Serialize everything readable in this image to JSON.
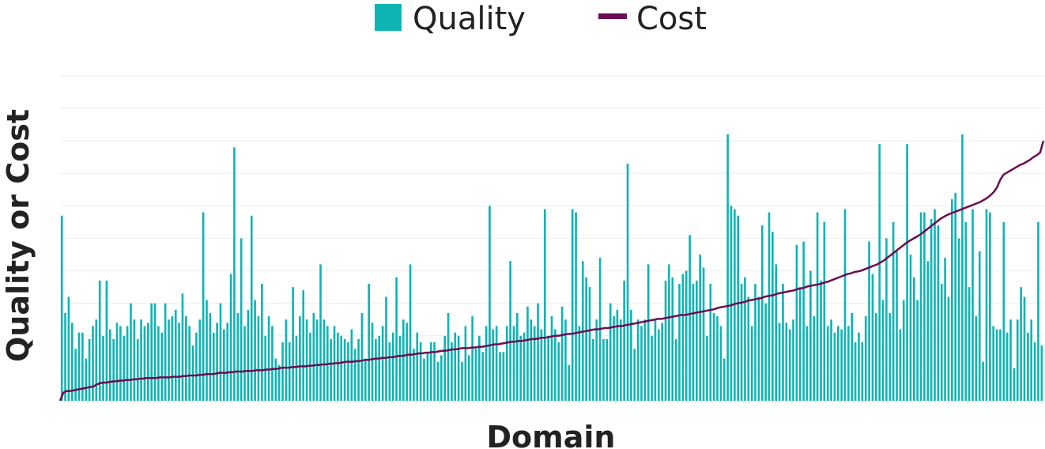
{
  "legend": {
    "quality_label": "Quality",
    "cost_label": "Cost"
  },
  "chart_data": {
    "type": "bar",
    "xlabel": "Domain",
    "ylabel": "Quality or Cost",
    "ylim": [
      0,
      10
    ],
    "grid": true,
    "legend_position": "top-center",
    "colors": {
      "quality": "#0eb4b4",
      "cost": "#6b0c55"
    },
    "series": [
      {
        "name": "Quality",
        "type": "bar",
        "values": [
          5.7,
          2.7,
          3.2,
          2.4,
          1.6,
          2.1,
          2.1,
          1.3,
          1.9,
          2.3,
          2.5,
          3.7,
          2.0,
          3.7,
          2.2,
          1.9,
          2.4,
          2.3,
          2.0,
          2.3,
          3.0,
          2.5,
          1.9,
          2.5,
          2.3,
          2.4,
          3.0,
          3.0,
          2.3,
          2.1,
          3.0,
          2.5,
          2.6,
          2.8,
          2.4,
          3.3,
          2.6,
          2.3,
          1.7,
          2.1,
          2.5,
          5.8,
          3.1,
          2.7,
          2.1,
          2.4,
          3.0,
          2.2,
          2.4,
          3.9,
          7.8,
          2.7,
          5.0,
          2.3,
          2.8,
          5.7,
          3.1,
          2.6,
          3.6,
          2.0,
          2.6,
          2.3,
          1.3,
          1.1,
          1.8,
          2.5,
          1.8,
          3.5,
          2.0,
          2.6,
          3.4,
          2.5,
          2.1,
          2.7,
          2.5,
          4.2,
          2.5,
          2.3,
          1.9,
          2.3,
          2.1,
          2.0,
          1.9,
          1.8,
          2.2,
          1.6,
          1.9,
          2.7,
          1.3,
          3.6,
          2.4,
          1.9,
          2.0,
          2.3,
          3.2,
          1.8,
          2.1,
          3.8,
          2.0,
          2.5,
          2.4,
          4.2,
          1.6,
          2.1,
          1.8,
          1.3,
          1.5,
          1.8,
          1.8,
          1.2,
          1.4,
          2.0,
          2.7,
          1.8,
          2.1,
          2.0,
          1.2,
          2.3,
          1.4,
          2.6,
          1.6,
          2.0,
          1.5,
          2.3,
          6.0,
          2.2,
          2.3,
          1.5,
          1.5,
          2.3,
          4.3,
          2.3,
          2.7,
          2.0,
          2.1,
          2.9,
          2.5,
          2.3,
          3.0,
          2.2,
          5.9,
          2.0,
          2.6,
          2.2,
          1.8,
          2.9,
          2.5,
          1.1,
          5.9,
          5.8,
          2.3,
          4.3,
          3.8,
          3.5,
          1.9,
          2.5,
          4.4,
          1.9,
          1.9,
          3.0,
          2.6,
          2.8,
          2.5,
          3.7,
          7.3,
          2.8,
          1.6,
          2.5,
          2.3,
          2.5,
          4.2,
          2.0,
          2.5,
          2.2,
          2.4,
          3.7,
          4.2,
          3.8,
          1.9,
          3.6,
          3.9,
          4.0,
          5.1,
          3.6,
          3.7,
          4.5,
          4.1,
          2.0,
          3.6,
          2.7,
          2.6,
          2.3,
          1.3,
          8.2,
          6.0,
          5.9,
          5.7,
          3.6,
          3.8,
          3.2,
          2.3,
          3.6,
          3.2,
          5.4,
          3.0,
          5.8,
          5.2,
          4.2,
          2.4,
          3.6,
          2.4,
          2.2,
          2.5,
          4.8,
          3.5,
          4.9,
          2.3,
          4.0,
          2.6,
          5.8,
          3.7,
          5.5,
          2.3,
          2.5,
          2.1,
          2.3,
          2.2,
          5.9,
          2.3,
          2.7,
          1.8,
          2.1,
          1.8,
          2.6,
          4.9,
          3.9,
          2.7,
          7.9,
          3.1,
          5.0,
          2.7,
          5.5,
          4.6,
          2.2,
          3.1,
          7.9,
          4.5,
          3.8,
          3.1,
          5.8,
          5.8,
          4.3,
          5.6,
          5.9,
          5.4,
          3.6,
          4.4,
          3.2,
          6.2,
          6.4,
          5.0,
          8.2,
          5.5,
          3.5,
          5.9,
          2.6,
          4.6,
          1.2,
          5.9,
          5.8,
          2.3,
          2.2,
          2.2,
          5.5,
          2.1,
          2.5,
          1.0,
          2.5,
          3.5,
          3.2,
          2.1,
          2.5,
          1.8,
          5.5,
          1.7
        ]
      },
      {
        "name": "Cost",
        "type": "line",
        "values": [
          0.0,
          0.25,
          0.3,
          0.3,
          0.32,
          0.34,
          0.36,
          0.38,
          0.4,
          0.42,
          0.44,
          0.5,
          0.54,
          0.56,
          0.56,
          0.58,
          0.6,
          0.6,
          0.62,
          0.62,
          0.64,
          0.64,
          0.66,
          0.66,
          0.68,
          0.68,
          0.7,
          0.7,
          0.7,
          0.7,
          0.72,
          0.72,
          0.72,
          0.72,
          0.74,
          0.74,
          0.74,
          0.76,
          0.76,
          0.78,
          0.78,
          0.78,
          0.8,
          0.8,
          0.82,
          0.82,
          0.82,
          0.84,
          0.86,
          0.86,
          0.86,
          0.88,
          0.88,
          0.9,
          0.9,
          0.9,
          0.92,
          0.92,
          0.92,
          0.94,
          0.94,
          0.94,
          0.96,
          0.96,
          0.98,
          0.98,
          1.0,
          1.02,
          1.02,
          1.02,
          1.04,
          1.04,
          1.06,
          1.06,
          1.06,
          1.08,
          1.08,
          1.1,
          1.1,
          1.12,
          1.12,
          1.14,
          1.14,
          1.16,
          1.16,
          1.18,
          1.2,
          1.2,
          1.2,
          1.22,
          1.22,
          1.24,
          1.26,
          1.26,
          1.28,
          1.3,
          1.3,
          1.32,
          1.32,
          1.34,
          1.34,
          1.36,
          1.38,
          1.38,
          1.4,
          1.42,
          1.42,
          1.44,
          1.46,
          1.46,
          1.48,
          1.48,
          1.5,
          1.5,
          1.52,
          1.54,
          1.54,
          1.56,
          1.58,
          1.58,
          1.6,
          1.62,
          1.62,
          1.62,
          1.64,
          1.64,
          1.66,
          1.66,
          1.68,
          1.7,
          1.72,
          1.74,
          1.74,
          1.76,
          1.78,
          1.8,
          1.82,
          1.82,
          1.84,
          1.84,
          1.86,
          1.88,
          1.9,
          1.9,
          1.92,
          1.94,
          1.94,
          1.96,
          1.98,
          2.0,
          2.0,
          2.02,
          2.04,
          2.06,
          2.06,
          2.08,
          2.1,
          2.12,
          2.14,
          2.16,
          2.18,
          2.2,
          2.2,
          2.22,
          2.24,
          2.24,
          2.26,
          2.28,
          2.3,
          2.3,
          2.32,
          2.34,
          2.36,
          2.38,
          2.4,
          2.42,
          2.44,
          2.46,
          2.48,
          2.5,
          2.52,
          2.52,
          2.54,
          2.56,
          2.58,
          2.6,
          2.62,
          2.64,
          2.64,
          2.66,
          2.68,
          2.7,
          2.72,
          2.74,
          2.76,
          2.78,
          2.8,
          2.82,
          2.86,
          2.88,
          2.9,
          2.92,
          2.94,
          2.98,
          3.0,
          3.02,
          3.04,
          3.08,
          3.1,
          3.12,
          3.14,
          3.16,
          3.2,
          3.22,
          3.24,
          3.26,
          3.3,
          3.32,
          3.34,
          3.36,
          3.38,
          3.4,
          3.44,
          3.46,
          3.48,
          3.52,
          3.54,
          3.56,
          3.58,
          3.6,
          3.64,
          3.66,
          3.7,
          3.74,
          3.78,
          3.82,
          3.86,
          3.9,
          3.92,
          3.96,
          3.98,
          4.0,
          4.04,
          4.08,
          4.12,
          4.16,
          4.2,
          4.26,
          4.32,
          4.4,
          4.48,
          4.56,
          4.64,
          4.72,
          4.8,
          4.88,
          4.94,
          5.0,
          5.06,
          5.12,
          5.2,
          5.28,
          5.36,
          5.44,
          5.52,
          5.6,
          5.66,
          5.72,
          5.76,
          5.8,
          5.84,
          5.88,
          5.92,
          5.96,
          6.0,
          6.04,
          6.08,
          6.12,
          6.18,
          6.24,
          6.32,
          6.42,
          6.56,
          6.8,
          6.96,
          7.02,
          7.08,
          7.14,
          7.2,
          7.26,
          7.3,
          7.36,
          7.42,
          7.5,
          7.56,
          7.64,
          8.0
        ]
      }
    ]
  }
}
